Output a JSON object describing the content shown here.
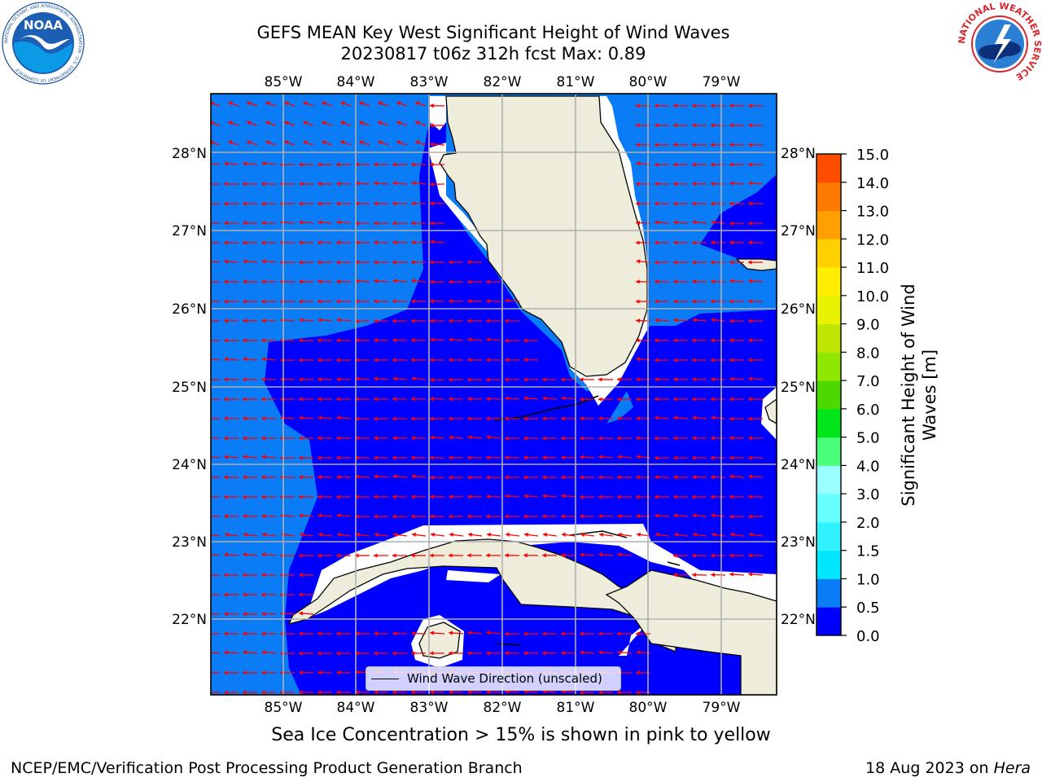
{
  "header": {
    "title_line1": "GEFS MEAN Key West Significant Height of Wind Waves",
    "title_line2": "20230817 t06z 312h fcst   Max: 0.89"
  },
  "logos": {
    "left": "NOAA",
    "left_ring_text": "NATIONAL OCEANIC AND ATMOSPHERIC ADMINISTRATION · U.S. DEPARTMENT OF COMMERCE",
    "right_ring_text": "NATIONAL WEATHER SERVICE"
  },
  "map": {
    "lon_labels": [
      "85°W",
      "84°W",
      "83°W",
      "82°W",
      "81°W",
      "80°W",
      "79°W"
    ],
    "lat_labels": [
      "28°N",
      "27°N",
      "26°N",
      "25°N",
      "24°N",
      "23°N",
      "22°N"
    ],
    "legend_label": "Wind Wave Direction (unscaled)",
    "colors": {
      "band_0_0_5": "#0000ff",
      "band_0_5_1_0": "#0a7cf5",
      "land": "#eeeddc",
      "arrows": "#ff0000",
      "grid": "#b0b0b0"
    }
  },
  "colorbar": {
    "label_line1": "Significant Height of Wind",
    "label_line2": "Waves [m]",
    "ticks": [
      "0.0",
      "0.5",
      "1.0",
      "1.5",
      "2.0",
      "3.0",
      "4.0",
      "5.0",
      "6.0",
      "7.0",
      "8.0",
      "9.0",
      "10.0",
      "11.0",
      "12.0",
      "13.0",
      "14.0",
      "15.0"
    ],
    "colors": [
      "#0000ff",
      "#0a7cf5",
      "#00e6ff",
      "#33f2ff",
      "#66ffff",
      "#99ffff",
      "#4cff7a",
      "#00e61a",
      "#4dd900",
      "#8fe600",
      "#bfe600",
      "#e6f200",
      "#ffee00",
      "#ffd000",
      "#ffa000",
      "#ff7a00",
      "#ff4d00",
      "#ff1a00"
    ]
  },
  "captions": {
    "sea_ice_note": "Sea Ice Concentration > 15% is shown in pink to yellow",
    "footer_left": "NCEP/EMC/Verification Post Processing Product Generation Branch",
    "footer_right_prefix": "18 Aug 2023 on ",
    "footer_right_host": "Hera"
  }
}
